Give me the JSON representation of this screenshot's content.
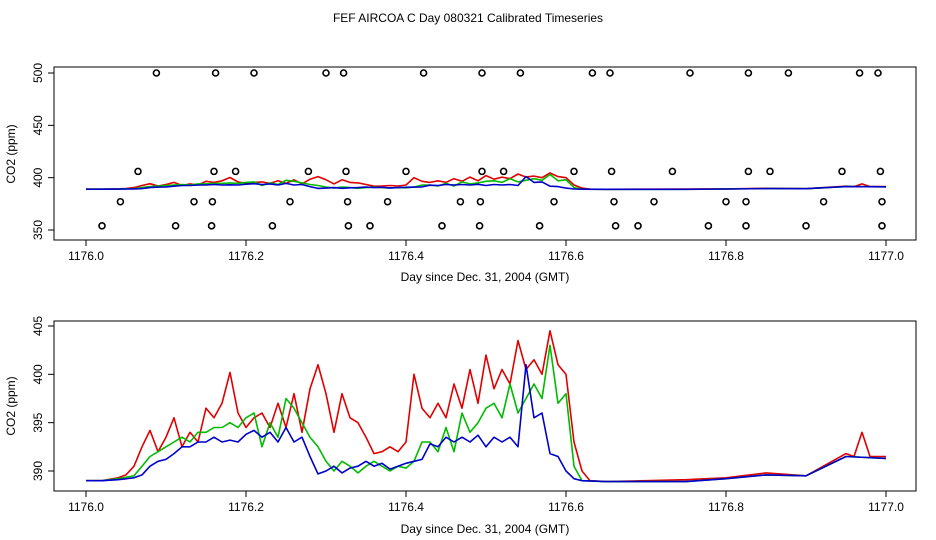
{
  "title": "FEF AIRCOA C  Day 080321  Calibrated Timeseries",
  "colors": {
    "series1": "#e00000",
    "series2": "#00bb00",
    "series3": "#0000cc",
    "markers": "#000000",
    "axis": "#000000"
  },
  "chart_data": [
    {
      "type": "line",
      "name": "top-panel",
      "xlabel": "Day since Dec. 31, 2004 (GMT)",
      "ylabel": "CO2 (ppm)",
      "xlim": [
        1176.0,
        1177.0
      ],
      "ylim": [
        350,
        500
      ],
      "xticks": [
        1176.0,
        1176.2,
        1176.4,
        1176.6,
        1176.8,
        1177.0
      ],
      "xtick_labels": [
        "1176.0",
        "1176.2",
        "1176.4",
        "1176.6",
        "1176.8",
        "1177.0"
      ],
      "yticks": [
        350,
        400,
        450,
        500
      ],
      "ytick_labels": [
        "350",
        "400",
        "450",
        "500"
      ],
      "markers": {
        "symbol": "circle",
        "points": [
          [
            1176.088,
            500
          ],
          [
            1176.162,
            500
          ],
          [
            1176.21,
            500
          ],
          [
            1176.3,
            500
          ],
          [
            1176.322,
            500
          ],
          [
            1176.422,
            500
          ],
          [
            1176.495,
            500
          ],
          [
            1176.543,
            500
          ],
          [
            1176.633,
            500
          ],
          [
            1176.655,
            500
          ],
          [
            1176.755,
            500
          ],
          [
            1176.828,
            500
          ],
          [
            1176.878,
            500
          ],
          [
            1176.967,
            500
          ],
          [
            1176.99,
            500
          ],
          [
            1176.065,
            406
          ],
          [
            1176.16,
            406
          ],
          [
            1176.187,
            406
          ],
          [
            1176.278,
            406
          ],
          [
            1176.325,
            406
          ],
          [
            1176.4,
            406
          ],
          [
            1176.495,
            406
          ],
          [
            1176.522,
            406
          ],
          [
            1176.61,
            406
          ],
          [
            1176.657,
            406
          ],
          [
            1176.733,
            406
          ],
          [
            1176.828,
            406
          ],
          [
            1176.855,
            406
          ],
          [
            1176.945,
            406
          ],
          [
            1176.993,
            406
          ],
          [
            1176.043,
            377
          ],
          [
            1176.135,
            377
          ],
          [
            1176.158,
            377
          ],
          [
            1176.255,
            377
          ],
          [
            1176.327,
            377
          ],
          [
            1176.377,
            377
          ],
          [
            1176.468,
            377
          ],
          [
            1176.493,
            377
          ],
          [
            1176.585,
            377
          ],
          [
            1176.66,
            377
          ],
          [
            1176.71,
            377
          ],
          [
            1176.8,
            377
          ],
          [
            1176.825,
            377
          ],
          [
            1176.922,
            377
          ],
          [
            1176.995,
            377
          ],
          [
            1176.02,
            354
          ],
          [
            1176.112,
            354
          ],
          [
            1176.157,
            354
          ],
          [
            1176.233,
            354
          ],
          [
            1176.328,
            354
          ],
          [
            1176.355,
            354
          ],
          [
            1176.445,
            354
          ],
          [
            1176.492,
            354
          ],
          [
            1176.567,
            354
          ],
          [
            1176.662,
            354
          ],
          [
            1176.69,
            354
          ],
          [
            1176.778,
            354
          ],
          [
            1176.825,
            354
          ],
          [
            1176.9,
            354
          ],
          [
            1176.995,
            354
          ]
        ]
      }
    },
    {
      "type": "line",
      "name": "bottom-panel",
      "xlabel": "Day since Dec. 31, 2004 (GMT)",
      "ylabel": "CO2 (ppm)",
      "xlim": [
        1176.0,
        1177.0
      ],
      "ylim": [
        389,
        405
      ],
      "xticks": [
        1176.0,
        1176.2,
        1176.4,
        1176.6,
        1176.8,
        1177.0
      ],
      "xtick_labels": [
        "1176.0",
        "1176.2",
        "1176.4",
        "1176.6",
        "1176.8",
        "1177.0"
      ],
      "yticks": [
        390,
        395,
        400,
        405
      ],
      "ytick_labels": [
        "390",
        "395",
        "400",
        "405"
      ],
      "series": [
        {
          "name": "red",
          "color": "#e00000",
          "x": [
            1176.0,
            1176.02,
            1176.04,
            1176.05,
            1176.06,
            1176.07,
            1176.08,
            1176.09,
            1176.1,
            1176.11,
            1176.12,
            1176.13,
            1176.14,
            1176.15,
            1176.16,
            1176.17,
            1176.18,
            1176.19,
            1176.2,
            1176.21,
            1176.22,
            1176.23,
            1176.24,
            1176.25,
            1176.26,
            1176.27,
            1176.28,
            1176.29,
            1176.3,
            1176.31,
            1176.32,
            1176.33,
            1176.34,
            1176.35,
            1176.36,
            1176.37,
            1176.38,
            1176.39,
            1176.4,
            1176.41,
            1176.42,
            1176.43,
            1176.44,
            1176.45,
            1176.46,
            1176.47,
            1176.48,
            1176.49,
            1176.5,
            1176.51,
            1176.52,
            1176.53,
            1176.54,
            1176.55,
            1176.56,
            1176.57,
            1176.58,
            1176.59,
            1176.6,
            1176.61,
            1176.62,
            1176.63,
            1176.65,
            1176.7,
            1176.75,
            1176.8,
            1176.85,
            1176.9,
            1176.95,
            1176.96,
            1176.97,
            1176.98,
            1177.0
          ],
          "values": [
            389.0,
            389.0,
            389.3,
            389.6,
            390.5,
            392.5,
            394.2,
            392.0,
            393.5,
            395.5,
            392.5,
            394.0,
            393.0,
            396.5,
            395.5,
            397.0,
            400.2,
            396.0,
            394.5,
            395.5,
            396.0,
            394.5,
            397.0,
            394.5,
            398.0,
            394.0,
            398.5,
            401.0,
            398.0,
            394.0,
            398.0,
            395.5,
            395.0,
            393.5,
            391.8,
            392.0,
            392.5,
            392.0,
            393.0,
            400.0,
            396.5,
            395.5,
            397.0,
            395.5,
            399.0,
            396.5,
            400.5,
            397.0,
            402.0,
            398.5,
            400.5,
            399.0,
            403.5,
            400.5,
            401.5,
            400.0,
            404.5,
            401.0,
            400.0,
            393.0,
            390.0,
            389.0,
            388.9,
            389.0,
            389.1,
            389.3,
            389.8,
            389.5,
            391.8,
            391.5,
            394.0,
            391.5,
            391.5
          ]
        },
        {
          "name": "green",
          "color": "#00bb00",
          "x": [
            1176.0,
            1176.02,
            1176.04,
            1176.06,
            1176.07,
            1176.08,
            1176.09,
            1176.1,
            1176.11,
            1176.12,
            1176.13,
            1176.14,
            1176.15,
            1176.16,
            1176.17,
            1176.18,
            1176.19,
            1176.2,
            1176.21,
            1176.22,
            1176.23,
            1176.24,
            1176.25,
            1176.26,
            1176.27,
            1176.28,
            1176.29,
            1176.3,
            1176.31,
            1176.32,
            1176.33,
            1176.34,
            1176.35,
            1176.36,
            1176.37,
            1176.38,
            1176.39,
            1176.4,
            1176.41,
            1176.42,
            1176.43,
            1176.44,
            1176.45,
            1176.46,
            1176.47,
            1176.48,
            1176.49,
            1176.5,
            1176.51,
            1176.52,
            1176.53,
            1176.54,
            1176.55,
            1176.56,
            1176.57,
            1176.58,
            1176.59,
            1176.6,
            1176.61,
            1176.62,
            1176.65,
            1176.7,
            1176.75,
            1176.8,
            1176.85,
            1176.9,
            1176.95,
            1177.0
          ],
          "values": [
            389.0,
            389.0,
            389.2,
            389.5,
            390.5,
            391.5,
            392.0,
            392.5,
            393.0,
            393.5,
            393.0,
            394.0,
            394.0,
            394.5,
            394.5,
            395.0,
            394.5,
            395.5,
            396.0,
            392.5,
            395.0,
            393.5,
            397.5,
            396.5,
            395.0,
            393.5,
            392.5,
            391.0,
            390.0,
            391.0,
            390.5,
            389.8,
            390.5,
            391.0,
            390.5,
            390.0,
            390.5,
            390.3,
            391.0,
            393.0,
            393.0,
            392.0,
            394.5,
            392.0,
            396.0,
            394.0,
            395.0,
            396.5,
            397.0,
            395.5,
            399.0,
            396.0,
            397.5,
            399.0,
            397.5,
            403.0,
            397.0,
            398.0,
            390.5,
            389.0,
            388.9,
            388.9,
            388.9,
            389.2,
            389.6,
            389.5,
            391.5,
            391.3
          ]
        },
        {
          "name": "blue",
          "color": "#0000cc",
          "x": [
            1176.0,
            1176.02,
            1176.04,
            1176.06,
            1176.07,
            1176.08,
            1176.09,
            1176.1,
            1176.11,
            1176.12,
            1176.13,
            1176.14,
            1176.15,
            1176.16,
            1176.17,
            1176.18,
            1176.19,
            1176.2,
            1176.21,
            1176.22,
            1176.23,
            1176.24,
            1176.25,
            1176.26,
            1176.27,
            1176.28,
            1176.29,
            1176.3,
            1176.31,
            1176.32,
            1176.33,
            1176.34,
            1176.35,
            1176.36,
            1176.37,
            1176.38,
            1176.39,
            1176.4,
            1176.41,
            1176.42,
            1176.43,
            1176.44,
            1176.45,
            1176.46,
            1176.47,
            1176.48,
            1176.49,
            1176.5,
            1176.51,
            1176.52,
            1176.53,
            1176.54,
            1176.55,
            1176.56,
            1176.57,
            1176.58,
            1176.59,
            1176.6,
            1176.61,
            1176.62,
            1176.65,
            1176.7,
            1176.75,
            1176.8,
            1176.85,
            1176.9,
            1176.95,
            1177.0
          ],
          "values": [
            389.0,
            389.0,
            389.1,
            389.3,
            389.6,
            390.5,
            391.0,
            391.2,
            391.8,
            392.5,
            392.5,
            393.0,
            393.0,
            393.5,
            393.0,
            393.2,
            393.0,
            393.8,
            394.2,
            393.5,
            394.0,
            393.0,
            394.5,
            393.0,
            393.5,
            391.5,
            389.7,
            390.0,
            390.5,
            389.8,
            390.3,
            390.5,
            391.0,
            390.5,
            390.8,
            390.2,
            390.5,
            390.8,
            391.0,
            391.2,
            392.8,
            392.5,
            393.5,
            393.0,
            393.5,
            393.0,
            393.7,
            392.5,
            393.5,
            393.0,
            393.5,
            392.5,
            401.0,
            395.5,
            396.0,
            391.8,
            391.5,
            390.0,
            389.2,
            389.0,
            388.9,
            388.9,
            388.9,
            389.2,
            389.6,
            389.5,
            391.5,
            391.3
          ]
        }
      ]
    }
  ]
}
